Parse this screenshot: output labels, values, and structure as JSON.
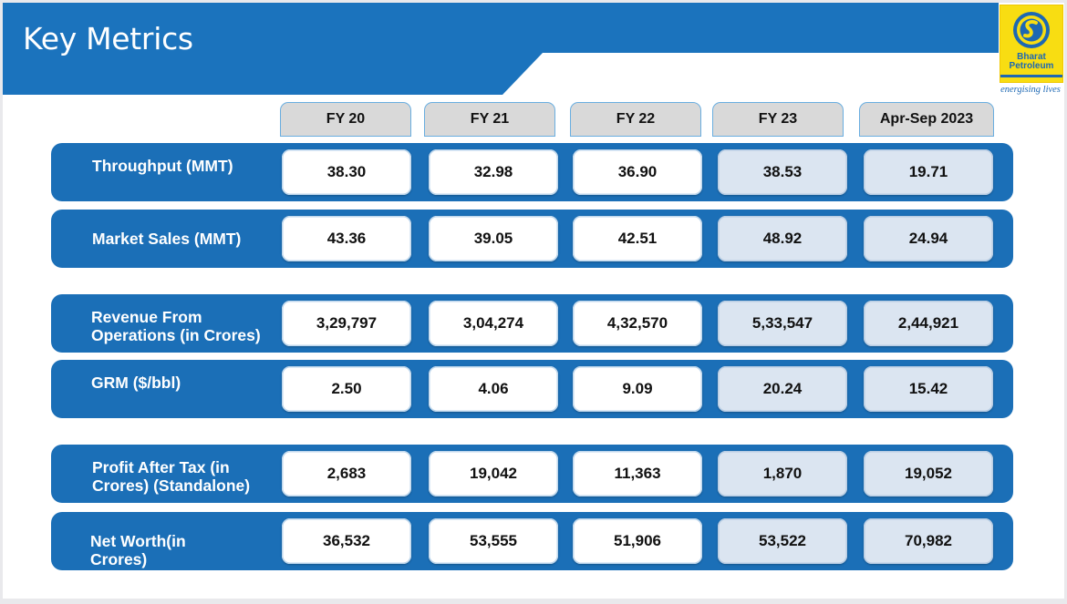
{
  "header": {
    "title": "Key Metrics"
  },
  "logo": {
    "line1": "Bharat",
    "line2": "Petroleum",
    "tagline": "energising lives"
  },
  "columns": [
    "FY 20",
    "FY 21",
    "FY 22",
    "FY 23",
    "Apr-Sep 2023"
  ],
  "rows": [
    {
      "label_lines": [
        "Throughput (MMT)"
      ],
      "values": [
        "38.30",
        "32.98",
        "36.90",
        "38.53",
        "19.71"
      ]
    },
    {
      "label_lines": [
        "Market Sales (MMT)"
      ],
      "values": [
        "43.36",
        "39.05",
        "42.51",
        "48.92",
        "24.94"
      ]
    },
    {
      "label_lines": [
        "Revenue From",
        "Operations (in Crores)"
      ],
      "values": [
        "3,29,797",
        "3,04,274",
        "4,32,570",
        "5,33,547",
        "2,44,921"
      ]
    },
    {
      "label_lines": [
        "GRM ($/bbl)"
      ],
      "values": [
        "2.50",
        "4.06",
        "9.09",
        "20.24",
        "15.42"
      ]
    },
    {
      "label_lines": [
        "Profit After Tax (in",
        "Crores) (Standalone)"
      ],
      "values": [
        "2,683",
        "19,042",
        "11,363",
        "1,870",
        "19,052"
      ]
    },
    {
      "label_lines": [
        "Net Worth(in",
        "Crores)"
      ],
      "values": [
        "36,532",
        "53,555",
        "51,906",
        "53,522",
        "70,982"
      ]
    }
  ],
  "colors": {
    "primary_blue": "#1b6fb7",
    "header_gray": "#d9d9d9",
    "cell_white": "#ffffff",
    "cell_light_blue": "#dbe5f1",
    "logo_yellow": "#f8dd12"
  }
}
